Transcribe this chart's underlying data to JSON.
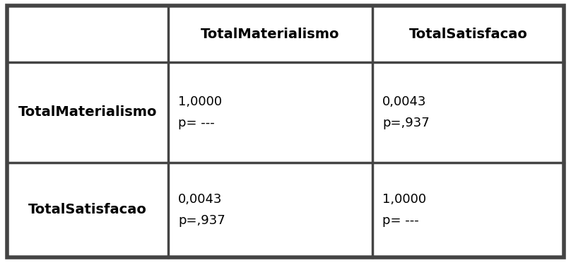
{
  "col_headers": [
    "",
    "TotalMaterialismo",
    "TotalSatisfacao"
  ],
  "row_headers": [
    "TotalMaterialismo",
    "TotalSatisfacao"
  ],
  "cell_lines": [
    [
      [
        "1,0000",
        "p= ---"
      ],
      [
        "0,0043",
        "p=,937"
      ]
    ],
    [
      [
        "0,0043",
        "p=,937"
      ],
      [
        "1,0000",
        "p= ---"
      ]
    ]
  ],
  "header_fontsize": 14,
  "cell_fontsize": 13,
  "row_header_fontsize": 14,
  "bg_color": "#ffffff",
  "border_color": "#444444",
  "text_color": "#000000",
  "outer_border_lw": 4.0,
  "inner_border_lw": 2.5
}
